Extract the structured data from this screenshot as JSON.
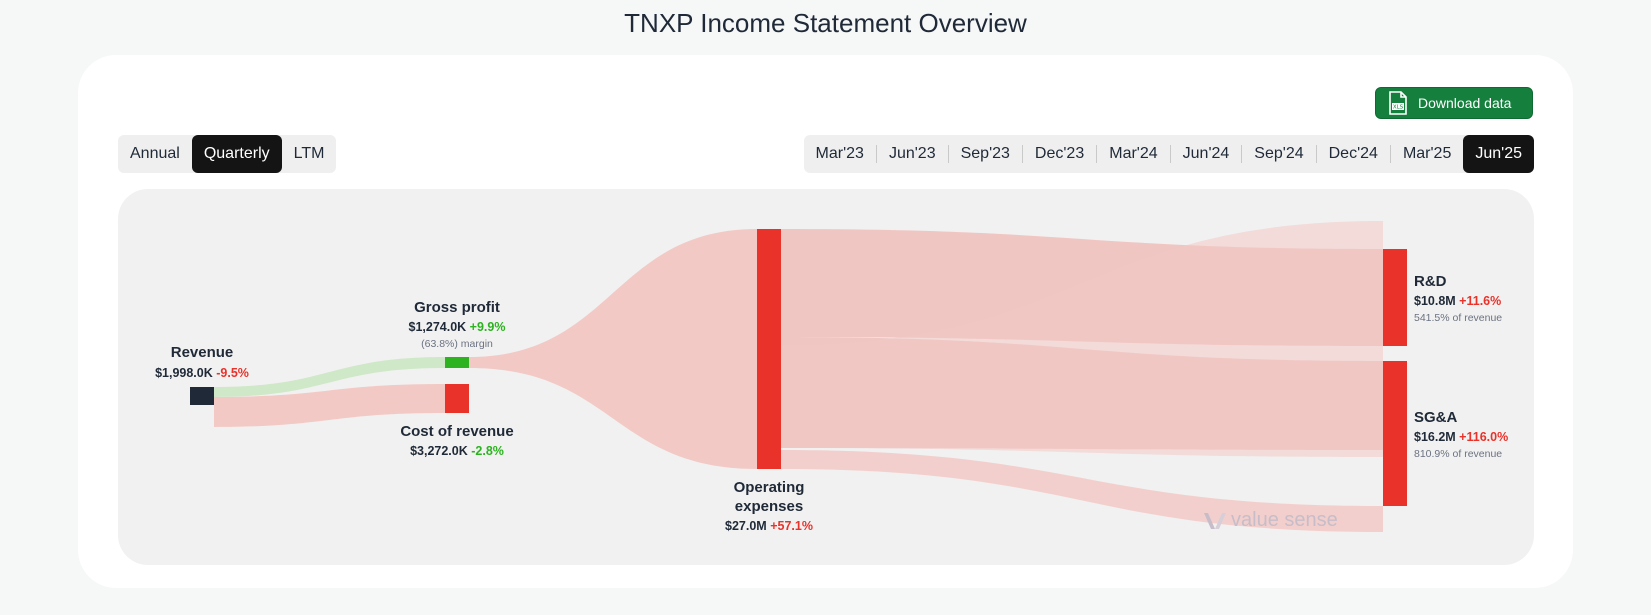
{
  "page": {
    "title": "TNXP Income Statement Overview"
  },
  "download": {
    "label": "Download data",
    "icon": "xls-file-icon"
  },
  "period_types": {
    "items": [
      "Annual",
      "Quarterly",
      "LTM"
    ],
    "selected": "Quarterly"
  },
  "periods": {
    "items": [
      "Mar'23",
      "Jun'23",
      "Sep'23",
      "Dec'23",
      "Mar'24",
      "Jun'24",
      "Sep'24",
      "Dec'24",
      "Mar'25",
      "Jun'25"
    ],
    "selected": "Jun'25"
  },
  "watermark": {
    "text": "value sense"
  },
  "colors": {
    "revenue_node": "#1f2937",
    "profit_node": "#2cb31f",
    "loss_node": "#e8322a",
    "profit_link": "#cfe8c8",
    "loss_link": "#f2c9c5",
    "opex_link": "#efb7b3",
    "positive_change": "#2cb31f",
    "negative_change": "#e8322a"
  },
  "chart_data": {
    "type": "sankey",
    "title": "TNXP Income Statement Overview",
    "units": "USD",
    "nodes": [
      {
        "id": "revenue",
        "label": "Revenue",
        "value_text": "$1,998.0K",
        "change_text": "-9.5%",
        "change_sign": "negative",
        "value": 1998.0
      },
      {
        "id": "gross_profit",
        "label": "Gross profit",
        "value_text": "$1,274.0K",
        "change_text": "+9.9%",
        "change_sign": "positive",
        "sub_text": "(63.8%) margin",
        "value": 1274.0
      },
      {
        "id": "cost_of_revenue",
        "label": "Cost of revenue",
        "value_text": "$3,272.0K",
        "change_text": "-2.8%",
        "change_sign": "positive",
        "value": 3272.0
      },
      {
        "id": "opex",
        "label_lines": [
          "Operating",
          "expenses"
        ],
        "value_text": "$27.0M",
        "change_text": "+57.1%",
        "change_sign": "negative",
        "value": 27000.0
      },
      {
        "id": "rnd",
        "label": "R&D",
        "value_text": "$10.8M",
        "change_text": "+11.6%",
        "change_sign": "negative",
        "sub_text": "541.5% of revenue",
        "value": 10800.0
      },
      {
        "id": "sga",
        "label": "SG&A",
        "value_text": "$16.2M",
        "change_text": "+116.0%",
        "change_sign": "negative",
        "sub_text": "810.9% of revenue",
        "value": 16200.0
      }
    ],
    "links": [
      {
        "source": "revenue",
        "target": "gross_profit",
        "value": 1274.0
      },
      {
        "source": "revenue",
        "target": "cost_of_revenue",
        "value": 3272.0
      },
      {
        "source": "gross_profit",
        "target": "opex",
        "value": 1274.0
      },
      {
        "source": "opex",
        "target": "rnd",
        "value": 10800.0
      },
      {
        "source": "opex",
        "target": "sga",
        "value": 16200.0
      }
    ]
  }
}
